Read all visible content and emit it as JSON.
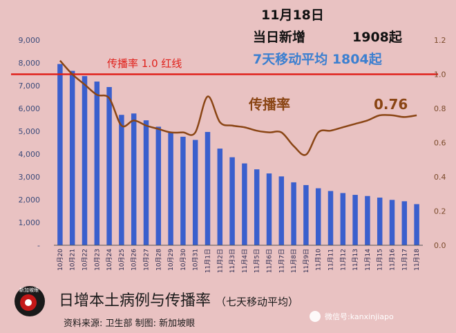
{
  "header": {
    "date": "11月18日",
    "new_label": "当日新增",
    "new_value": "1908起",
    "avg_label": "7天移动平均 1804起"
  },
  "annotations": {
    "redline": "传播率 1.0  红线",
    "rate_label": "传播率",
    "rate_value": "0.76"
  },
  "footer": {
    "title": "日增本土病例与传播率",
    "subtitle": "（七天移动平均）",
    "source": "资料来源:  卫生部     制图:  新加坡眼",
    "wechat": "微信号:kanxinjiapo",
    "logo_text": "新加坡眼"
  },
  "colors": {
    "bar": "#3a5fcd",
    "line": "#8a4514",
    "redline": "#e0201a",
    "background": "#e9c2c2"
  },
  "chart_data": {
    "type": "bar",
    "categories": [
      "10月20",
      "10月21",
      "10月22",
      "10月23",
      "10月24",
      "10月25",
      "10月26",
      "10月27",
      "10月28",
      "10月29",
      "10月30",
      "10月31",
      "11月1日",
      "11月2日",
      "11月3日",
      "11月4日",
      "11月5日",
      "11月6日",
      "11月7日",
      "11月8日",
      "11月9日",
      "11月10",
      "11月11",
      "11月12",
      "11月13",
      "11月14",
      "11月15",
      "11月16",
      "11月17",
      "11月18"
    ],
    "series": [
      {
        "axis": "left",
        "type": "bar",
        "values": [
          7950,
          7650,
          7420,
          7180,
          6940,
          5720,
          5780,
          5480,
          5200,
          4970,
          4760,
          4620,
          4970,
          4240,
          3860,
          3590,
          3330,
          3150,
          3020,
          2760,
          2640,
          2500,
          2380,
          2290,
          2210,
          2160,
          2090,
          1990,
          1930,
          1804
        ]
      },
      {
        "axis": "right",
        "type": "line",
        "values": [
          1.08,
          1.0,
          0.94,
          0.88,
          0.86,
          0.7,
          0.73,
          0.7,
          0.68,
          0.66,
          0.66,
          0.66,
          0.87,
          0.72,
          0.7,
          0.69,
          0.67,
          0.66,
          0.66,
          0.58,
          0.53,
          0.66,
          0.67,
          0.69,
          0.71,
          0.73,
          0.76,
          0.76,
          0.75,
          0.76
        ]
      }
    ],
    "yticks_left": [
      "-",
      "1,000",
      "2,000",
      "3,000",
      "4,000",
      "5,000",
      "6,000",
      "7,000",
      "8,000",
      "9,000"
    ],
    "yticks_right": [
      "0.0",
      "0.2",
      "0.4",
      "0.6",
      "0.8",
      "1.0",
      "1.2"
    ],
    "ylim_left": [
      0,
      9000
    ],
    "ylim_right": [
      0,
      1.2
    ],
    "reference_line": 1.0
  }
}
